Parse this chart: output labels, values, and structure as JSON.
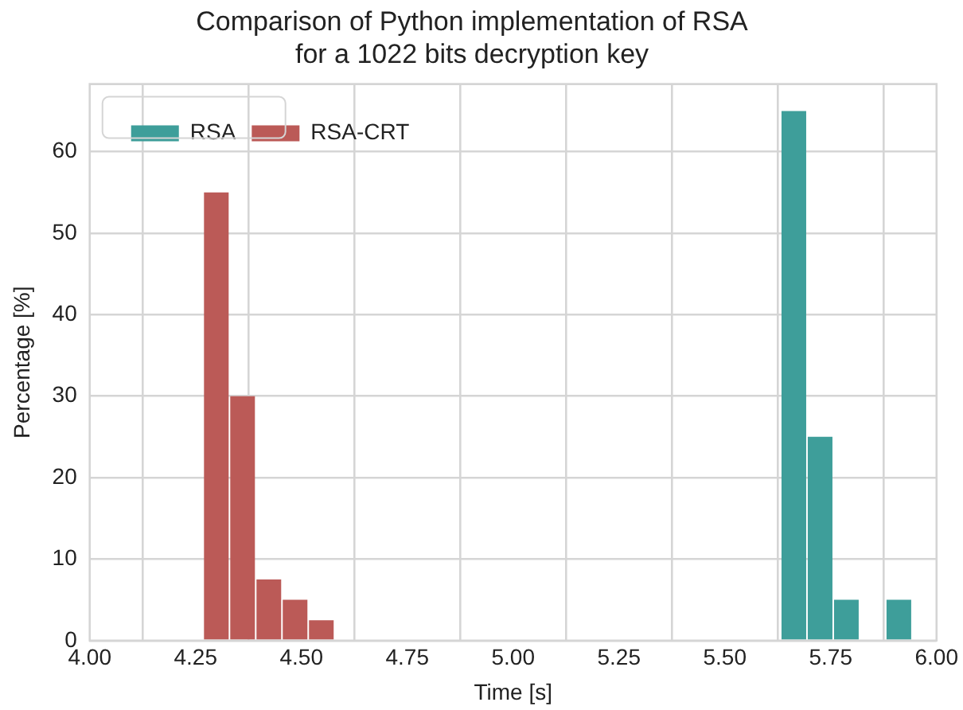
{
  "chart_data": {
    "type": "histogram",
    "title": "Comparison of Python implementation of RSA\nfor a 1022 bits decryption key",
    "xlabel": "Time [s]",
    "ylabel": "Percentage [%]",
    "bins": [
      4.268,
      4.33,
      4.392,
      4.454,
      4.516,
      4.578,
      4.64,
      4.702,
      4.764,
      4.826,
      4.888,
      4.95,
      5.012,
      5.074,
      5.136,
      5.198,
      5.26,
      5.322,
      5.384,
      5.446,
      5.508,
      5.57,
      5.632,
      5.694,
      5.756,
      5.818,
      5.88,
      5.942
    ],
    "series": [
      {
        "name": "RSA",
        "color": "#3e9e9a",
        "values": [
          0,
          0,
          0,
          0,
          0,
          0,
          0,
          0,
          0,
          0,
          0,
          0,
          0,
          0,
          0,
          0,
          0,
          0,
          0,
          0,
          0,
          0,
          65,
          25,
          5,
          0,
          5
        ]
      },
      {
        "name": "RSA-CRT",
        "color": "#bb5a57",
        "values": [
          55,
          30,
          7.5,
          5,
          2.5,
          0,
          0,
          0,
          0,
          0,
          0,
          0,
          0,
          0,
          0,
          0,
          0,
          0,
          0,
          0,
          0,
          0,
          0,
          0,
          0,
          0,
          0
        ]
      }
    ],
    "xlim": [
      4.0,
      6.0
    ],
    "xticks": [
      {
        "value": 4,
        "label": "4.00"
      },
      {
        "value": 4.25,
        "label": "4.25"
      },
      {
        "value": 4.5,
        "label": "4.50"
      },
      {
        "value": 4.75,
        "label": "4.75"
      },
      {
        "value": 5,
        "label": "5.00"
      },
      {
        "value": 5.25,
        "label": "5.25"
      },
      {
        "value": 5.5,
        "label": "5.50"
      },
      {
        "value": 5.75,
        "label": "5.75"
      },
      {
        "value": 6,
        "label": "6.00"
      }
    ],
    "ylim": [
      0,
      68.3
    ],
    "yticks": [
      0,
      10,
      20,
      30,
      40,
      50,
      60
    ],
    "grid": true,
    "legend": "top left"
  }
}
